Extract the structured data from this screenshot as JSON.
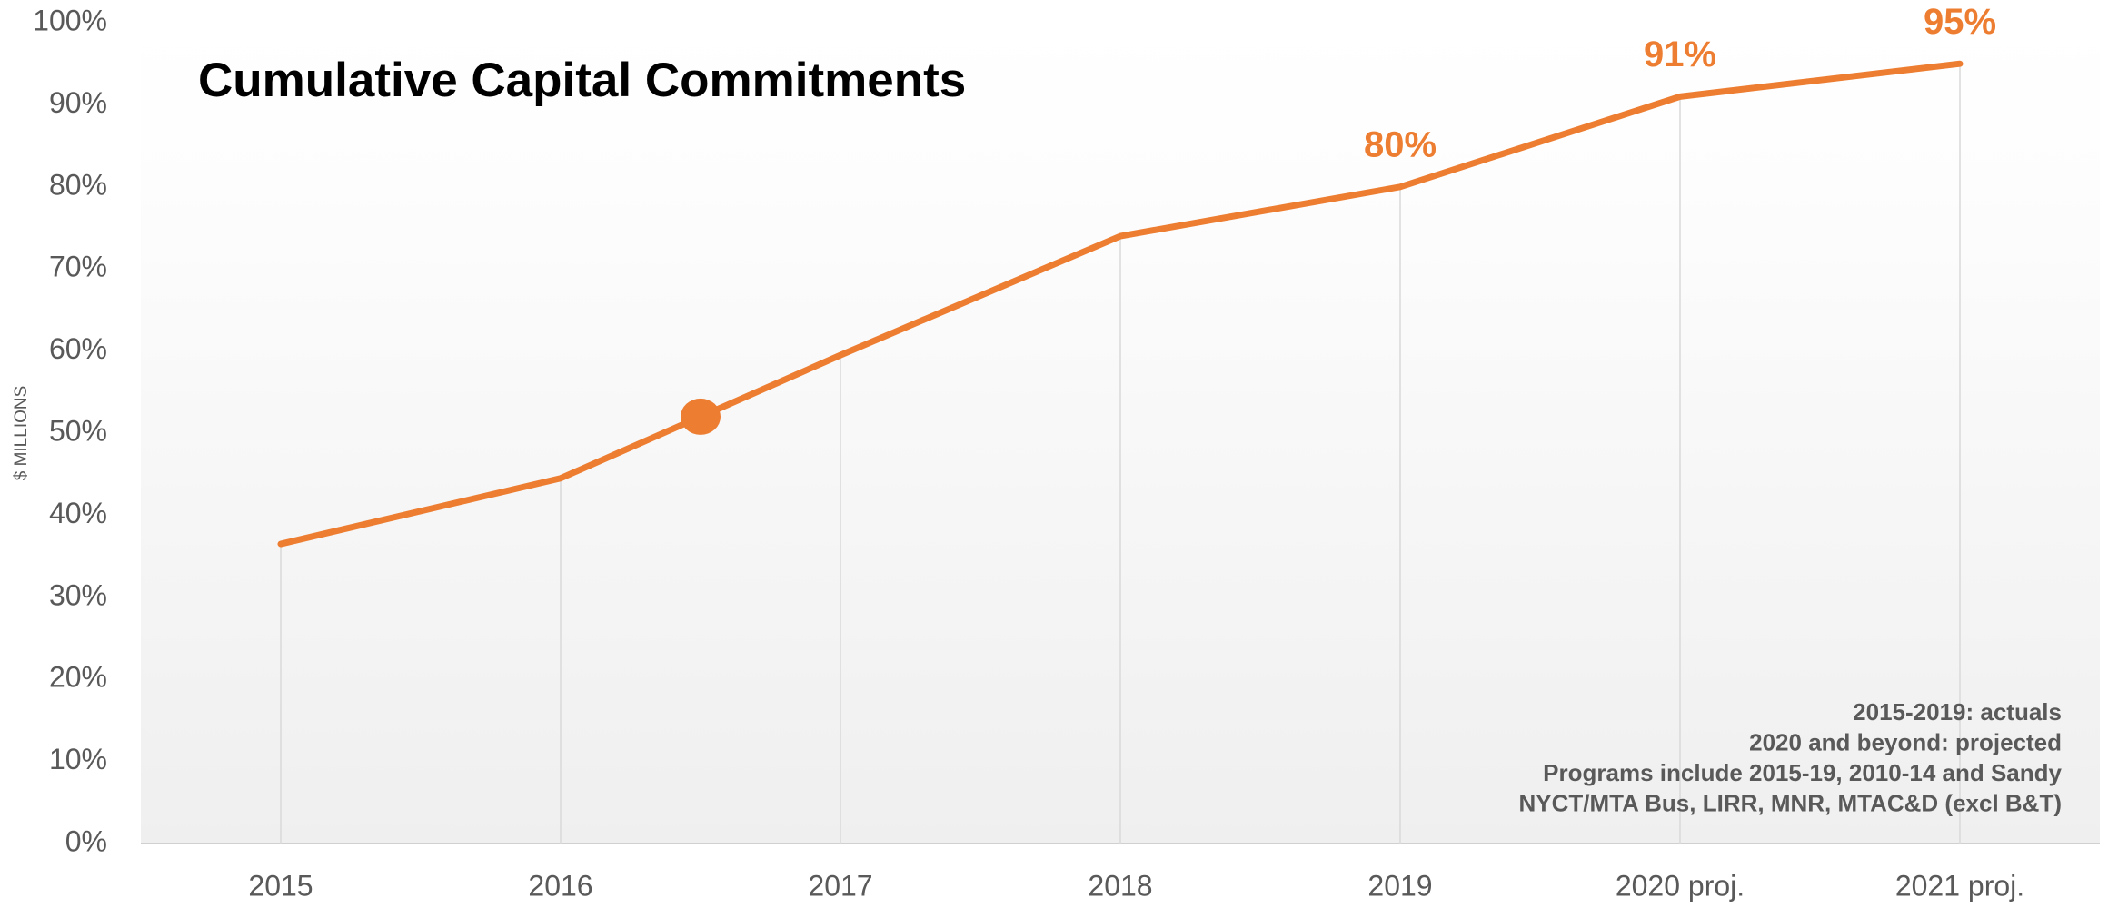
{
  "chart_data": {
    "type": "line",
    "title": "Cumulative Capital Commitments",
    "y_axis_label": "$ MILLIONS",
    "categories": [
      "2015",
      "2016",
      "2017",
      "2018",
      "2019",
      "2020 proj.",
      "2021 proj."
    ],
    "series": [
      {
        "name": "Cumulative Capital Commitments",
        "color": "#ed7d31",
        "values": [
          36.5,
          44.5,
          59.5,
          74,
          80,
          91,
          95
        ],
        "value_labels": [
          null,
          null,
          null,
          null,
          "80%",
          "91%",
          "95%"
        ]
      }
    ],
    "highlight_point": {
      "category_position": 1.5,
      "value": 52,
      "color": "#ed7d31"
    },
    "ylim": [
      0,
      100
    ],
    "yticks": [
      {
        "value": 0,
        "label": "0%"
      },
      {
        "value": 10,
        "label": "10%"
      },
      {
        "value": 20,
        "label": "20%"
      },
      {
        "value": 30,
        "label": "30%"
      },
      {
        "value": 40,
        "label": "40%"
      },
      {
        "value": 50,
        "label": "50%"
      },
      {
        "value": 60,
        "label": "60%"
      },
      {
        "value": 70,
        "label": "70%"
      },
      {
        "value": 80,
        "label": "80%"
      },
      {
        "value": 90,
        "label": "90%"
      },
      {
        "value": 100,
        "label": "100%"
      }
    ],
    "drop_lines": true,
    "notes": [
      "2015-2019: actuals",
      "2020 and beyond: projected",
      "Programs include 2015-19, 2010-14 and Sandy",
      "NYCT/MTA Bus, LIRR, MNR, MTAC&D (excl B&T)"
    ]
  }
}
